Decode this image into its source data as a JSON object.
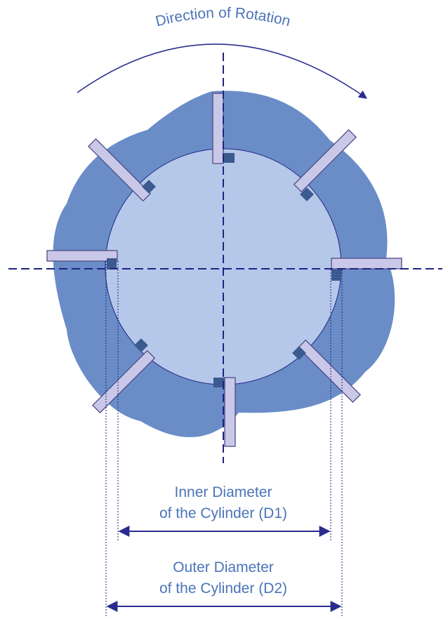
{
  "title": "Direction of Rotation",
  "inner_label": {
    "line1": "Inner Diameter",
    "line2": "of the Cylinder (D1)"
  },
  "outer_label": {
    "line1": "Outer Diameter",
    "line2": "of the Cylinder (D2)"
  },
  "colors": {
    "outer_shape": "#6a8dc8",
    "inner_circle": "#b5c8ea",
    "vane": "#c9c8e8",
    "vane_stroke": "#4f4c86",
    "slot": "#3b5a8f",
    "center_line": "#1f2480",
    "arrow": "#2b2b8f",
    "text": "#4a74b8"
  },
  "icons": {
    "rotation_arrow": "curved-arrow-icon",
    "dimension_arrow": "double-headed-arrow-icon"
  }
}
